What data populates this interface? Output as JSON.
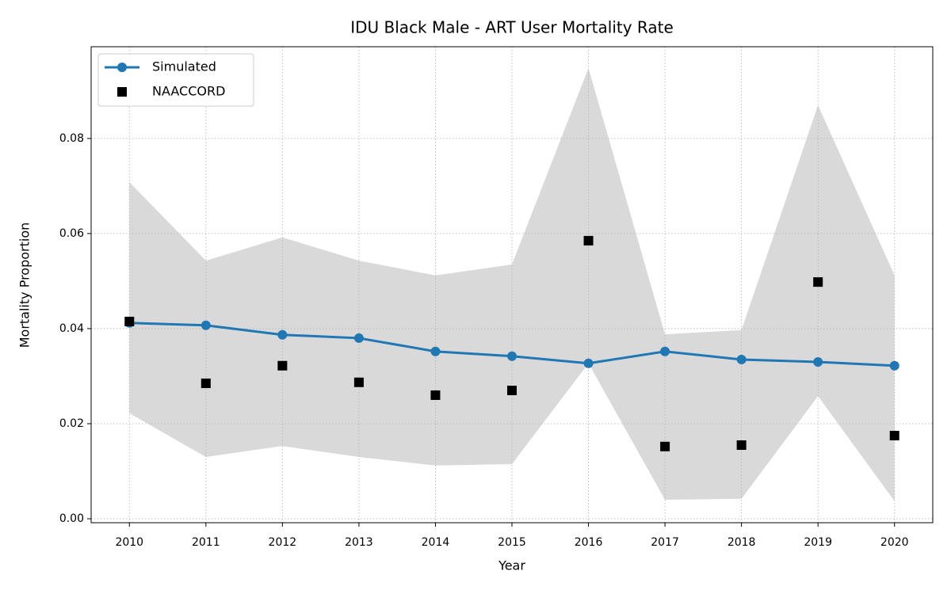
{
  "chart_data": {
    "type": "line",
    "title": "IDU Black Male - ART User Mortality Rate",
    "x_label": "Year",
    "y_label": "Mortality Proportion",
    "x": [
      2010,
      2011,
      2012,
      2013,
      2014,
      2015,
      2016,
      2017,
      2018,
      2019,
      2020
    ],
    "series": [
      {
        "name": "Simulated",
        "color": "#1f77b4",
        "style": "line-marker",
        "values": [
          0.0412,
          0.0407,
          0.0387,
          0.038,
          0.0352,
          0.0342,
          0.0327,
          0.0352,
          0.0335,
          0.033,
          0.0322
        ]
      },
      {
        "name": "NAACCORD",
        "color": "#000000",
        "style": "square",
        "values": [
          0.0415,
          0.0285,
          0.0322,
          0.0287,
          0.026,
          0.027,
          0.0585,
          0.0152,
          0.0155,
          0.0498,
          0.0175
        ]
      }
    ],
    "band": {
      "color": "#d9d9d9",
      "upper": [
        0.0708,
        0.0543,
        0.0592,
        0.0543,
        0.0512,
        0.0535,
        0.0948,
        0.0388,
        0.0397,
        0.087,
        0.0512
      ],
      "lower": [
        0.0222,
        0.013,
        0.0153,
        0.013,
        0.0112,
        0.0115,
        0.0327,
        0.004,
        0.0042,
        0.0258,
        0.0037
      ]
    },
    "xlim": [
      2009.5,
      2020.5
    ],
    "xticks": [
      2010,
      2011,
      2012,
      2013,
      2014,
      2015,
      2016,
      2017,
      2018,
      2019,
      2020
    ],
    "ylim": [
      -0.00083,
      0.0993
    ],
    "yticks": [
      {
        "value": 0,
        "label": "0.00"
      },
      0.02,
      0.04,
      0.06,
      0.08
    ],
    "grid": true,
    "legend": "upper-left"
  }
}
